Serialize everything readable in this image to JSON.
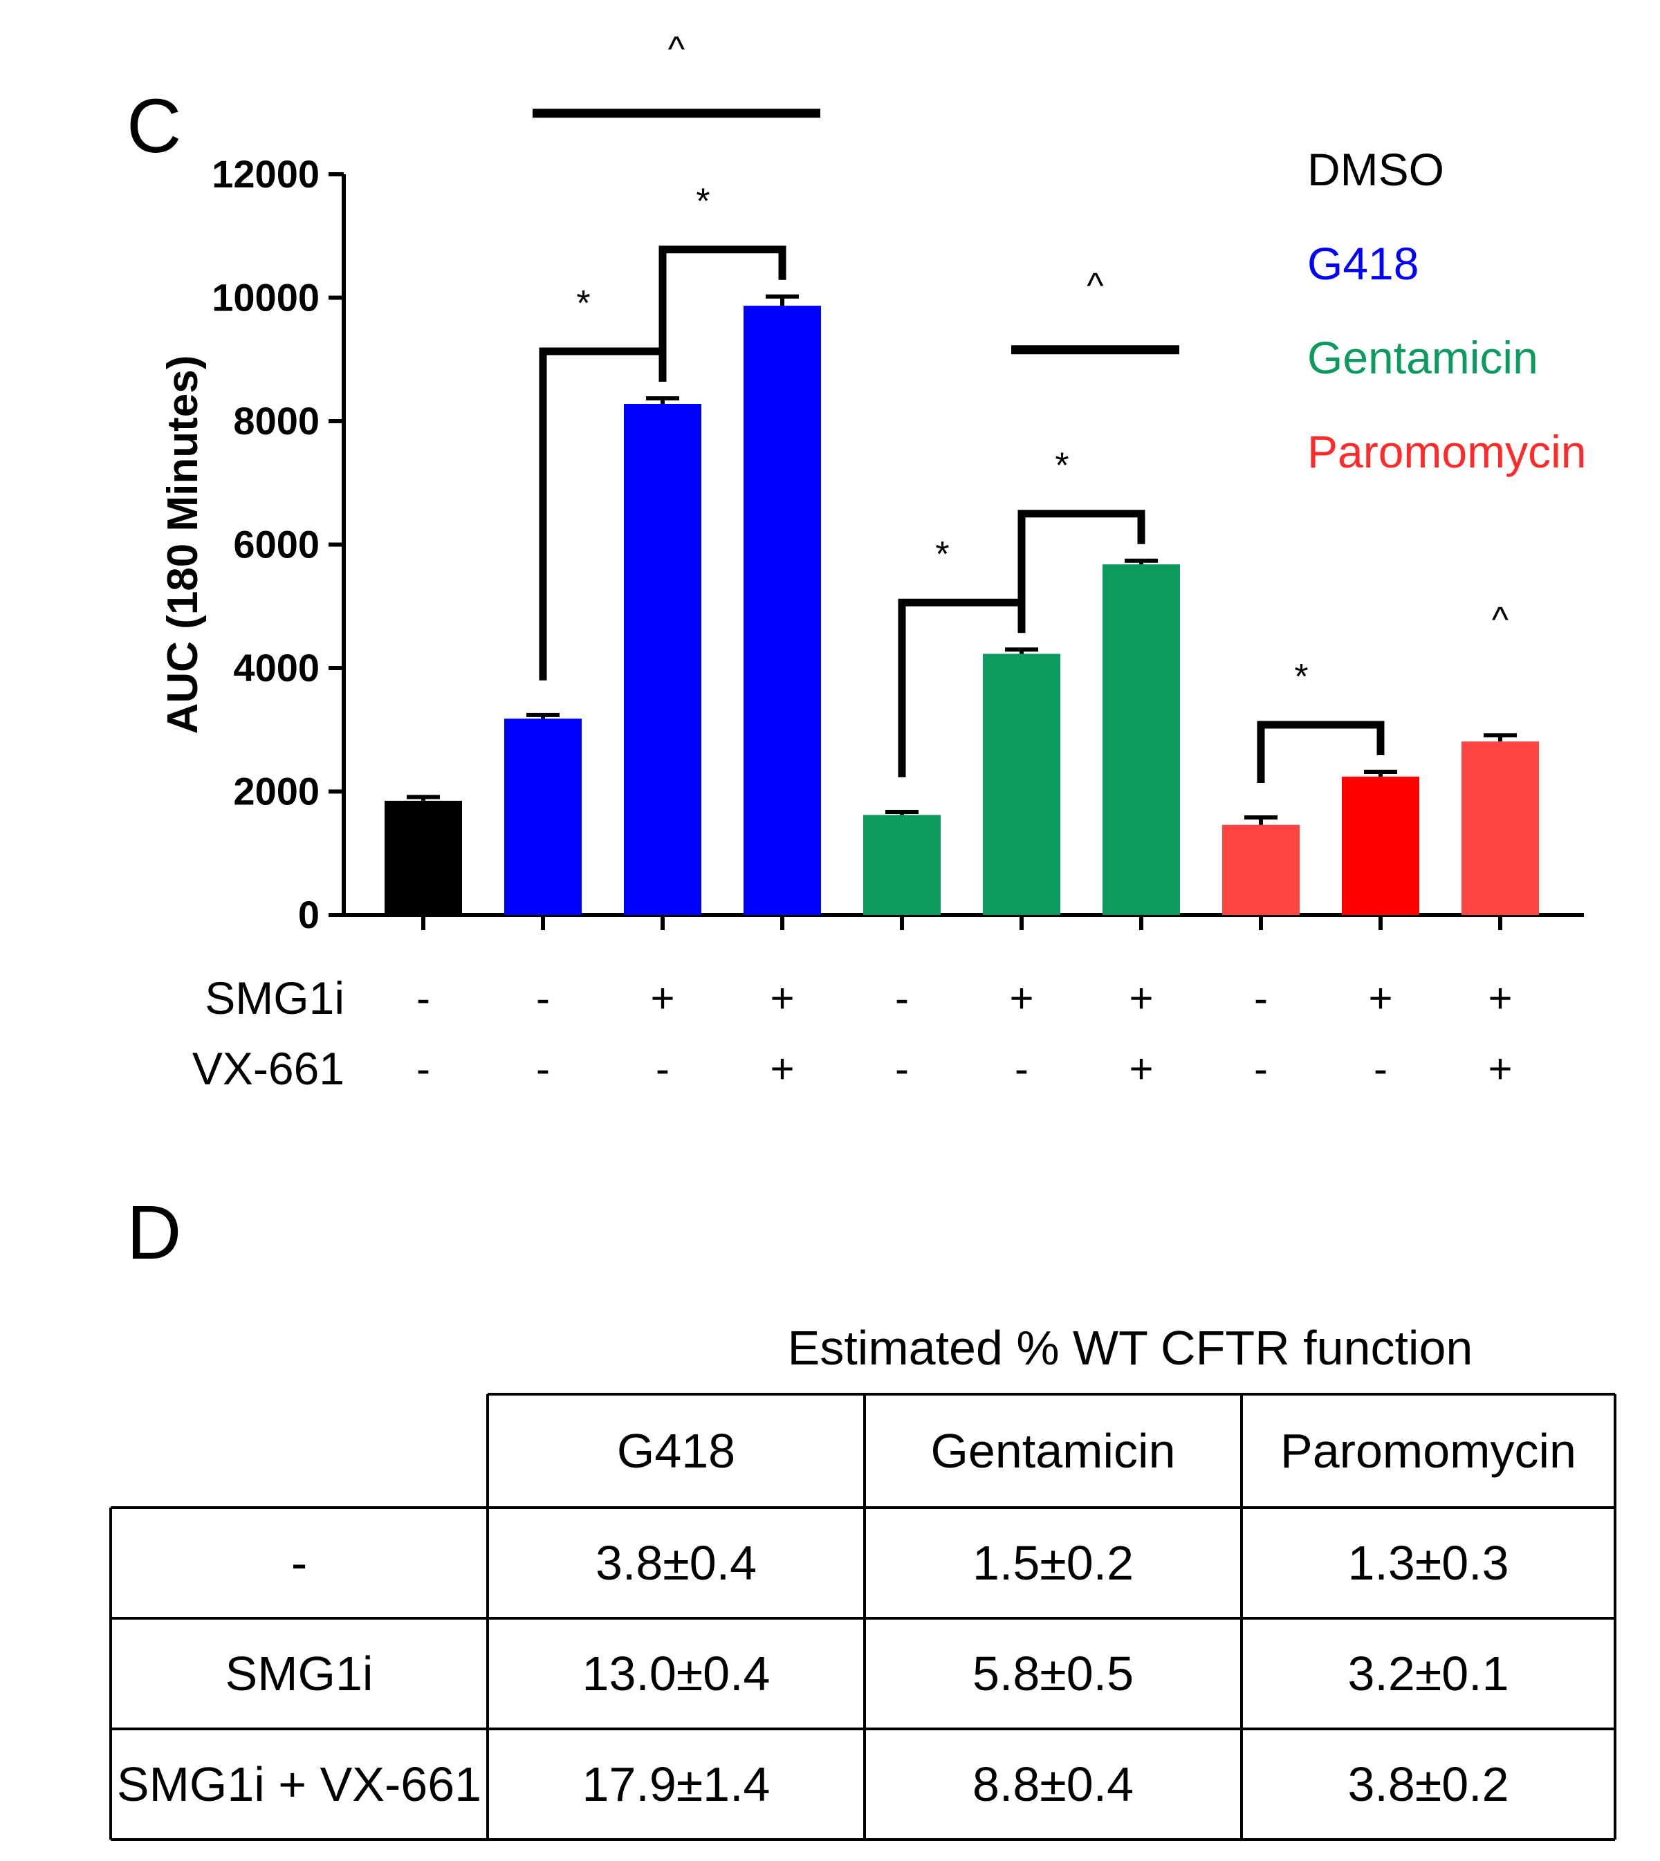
{
  "panel_c_letter": "C",
  "panel_d_letter": "D",
  "chart_data": {
    "type": "bar",
    "title": "",
    "ylabel": "AUC (180 Minutes)",
    "ylim": [
      0,
      12000
    ],
    "yticks": [
      0,
      2000,
      4000,
      6000,
      8000,
      10000,
      12000
    ],
    "legend": [
      {
        "name": "DMSO",
        "color": "#000000"
      },
      {
        "name": "G418",
        "color": "#0000ff"
      },
      {
        "name": "Gentamicin",
        "color": "#0d9a5e"
      },
      {
        "name": "Paromomycin",
        "color": "#ff2a2a"
      }
    ],
    "legend_position": "top-right",
    "condition_labels": [
      "SMG1i",
      "VX-661"
    ],
    "bars": [
      {
        "group": "DMSO",
        "value": 1850,
        "error": 60,
        "color": "#000000",
        "smg1i": "-",
        "vx661": "-"
      },
      {
        "group": "G418",
        "value": 3180,
        "error": 60,
        "color": "#0000ff",
        "smg1i": "-",
        "vx661": "-"
      },
      {
        "group": "G418",
        "value": 8280,
        "error": 90,
        "color": "#0000ff",
        "smg1i": "+",
        "vx661": "-"
      },
      {
        "group": "G418",
        "value": 9870,
        "error": 150,
        "color": "#0000ff",
        "smg1i": "+",
        "vx661": "+"
      },
      {
        "group": "Gentamicin",
        "value": 1620,
        "error": 50,
        "color": "#0d9a5e",
        "smg1i": "-",
        "vx661": "-"
      },
      {
        "group": "Gentamicin",
        "value": 4230,
        "error": 70,
        "color": "#0d9a5e",
        "smg1i": "+",
        "vx661": "-"
      },
      {
        "group": "Gentamicin",
        "value": 5680,
        "error": 60,
        "color": "#0d9a5e",
        "smg1i": "+",
        "vx661": "+"
      },
      {
        "group": "Paromomycin",
        "value": 1460,
        "error": 120,
        "color": "#ff4444",
        "smg1i": "-",
        "vx661": "-"
      },
      {
        "group": "Paromomycin",
        "value": 2240,
        "error": 80,
        "color": "#ff0000",
        "smg1i": "+",
        "vx661": "-"
      },
      {
        "group": "Paromomycin",
        "value": 2810,
        "error": 100,
        "color": "#ff4444",
        "smg1i": "+",
        "vx661": "+"
      }
    ],
    "significance": [
      {
        "kind": "bracket",
        "from_bar": 1,
        "to_bar": 2,
        "symbol": "*"
      },
      {
        "kind": "bracket",
        "from_bar": 2,
        "to_bar": 3,
        "symbol": "*"
      },
      {
        "kind": "line",
        "from_bar": 1,
        "to_bar": 3,
        "symbol": "^"
      },
      {
        "kind": "bracket",
        "from_bar": 4,
        "to_bar": 5,
        "symbol": "*"
      },
      {
        "kind": "bracket",
        "from_bar": 5,
        "to_bar": 6,
        "symbol": "*"
      },
      {
        "kind": "line",
        "from_bar": 5,
        "to_bar": 6,
        "symbol": "^"
      },
      {
        "kind": "bracket",
        "from_bar": 7,
        "to_bar": 8,
        "symbol": "*"
      },
      {
        "kind": "mark",
        "bar": 9,
        "symbol": "^"
      }
    ]
  },
  "table": {
    "caption": "Estimated % WT CFTR function",
    "columns": [
      "G418",
      "Gentamicin",
      "Paromomycin"
    ],
    "rows": [
      {
        "label": "-",
        "values": [
          "3.8±0.4",
          "1.5±0.2",
          "1.3±0.3"
        ]
      },
      {
        "label": "SMG1i",
        "values": [
          "13.0±0.4",
          "5.8±0.5",
          "3.2±0.1"
        ]
      },
      {
        "label": "SMG1i + VX-661",
        "values": [
          "17.9±1.4",
          "8.8±0.4",
          "3.8±0.2"
        ]
      }
    ]
  }
}
